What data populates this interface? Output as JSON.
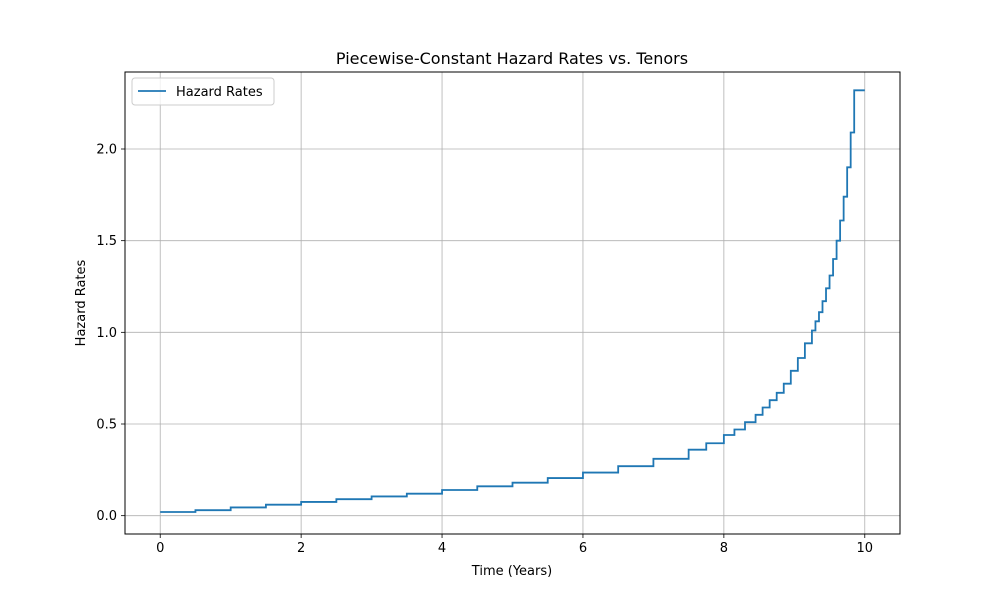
{
  "chart_data": {
    "type": "line",
    "step": "post",
    "title": "Piecewise-Constant Hazard Rates vs. Tenors",
    "xlabel": "Time (Years)",
    "ylabel": "Hazard Rates",
    "xlim": [
      -0.5,
      10.5
    ],
    "ylim": [
      -0.1,
      2.42
    ],
    "xticks": [
      0,
      2,
      4,
      6,
      8,
      10
    ],
    "xtick_labels": [
      "0",
      "2",
      "4",
      "6",
      "8",
      "10"
    ],
    "yticks": [
      0.0,
      0.5,
      1.0,
      1.5,
      2.0
    ],
    "ytick_labels": [
      "0.0",
      "0.5",
      "1.0",
      "1.5",
      "2.0"
    ],
    "grid": true,
    "legend_position": "upper-left",
    "series": [
      {
        "name": "Hazard Rates",
        "color": "#1f77b4",
        "x": [
          0.0,
          0.5,
          1.0,
          1.5,
          2.0,
          2.5,
          3.0,
          3.5,
          4.0,
          4.5,
          5.0,
          5.5,
          6.0,
          6.5,
          7.0,
          7.5,
          7.75,
          8.0,
          8.15,
          8.3,
          8.45,
          8.55,
          8.65,
          8.75,
          8.85,
          8.95,
          9.05,
          9.15,
          9.25,
          9.3,
          9.35,
          9.4,
          9.45,
          9.5,
          9.55,
          9.6,
          9.65,
          9.7,
          9.75,
          9.8,
          9.85,
          9.9,
          9.95,
          10.0
        ],
        "y": [
          0.02,
          0.03,
          0.045,
          0.06,
          0.075,
          0.09,
          0.105,
          0.12,
          0.14,
          0.16,
          0.18,
          0.205,
          0.235,
          0.27,
          0.31,
          0.36,
          0.395,
          0.44,
          0.47,
          0.51,
          0.55,
          0.59,
          0.63,
          0.67,
          0.72,
          0.79,
          0.86,
          0.94,
          1.01,
          1.06,
          1.11,
          1.17,
          1.24,
          1.31,
          1.4,
          1.5,
          1.61,
          1.74,
          1.9,
          2.09,
          2.32,
          2.32,
          2.32,
          2.32
        ]
      }
    ]
  }
}
